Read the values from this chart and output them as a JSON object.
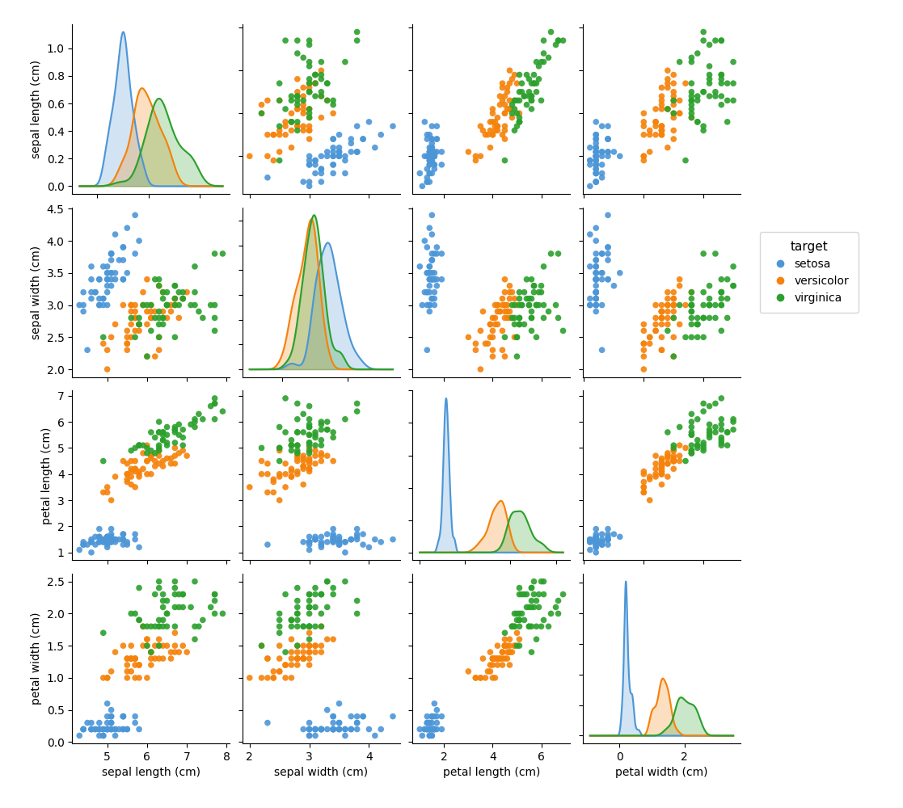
{
  "features": [
    "sepal length (cm)",
    "sepal width (cm)",
    "petal length (cm)",
    "petal width (cm)"
  ],
  "target_col": "target",
  "classes": [
    "setosa",
    "versicolor",
    "virginica"
  ],
  "colors": [
    "#4c96d7",
    "#f5820a",
    "#2ca02c"
  ],
  "alpha_scatter": 0.9,
  "alpha_kde": 0.25,
  "figsize": [
    11.17,
    10.0
  ],
  "dpi": 100,
  "legend_title": "target",
  "marker_size": 30,
  "kde_lw": 1.5,
  "scatter_marker": "o"
}
